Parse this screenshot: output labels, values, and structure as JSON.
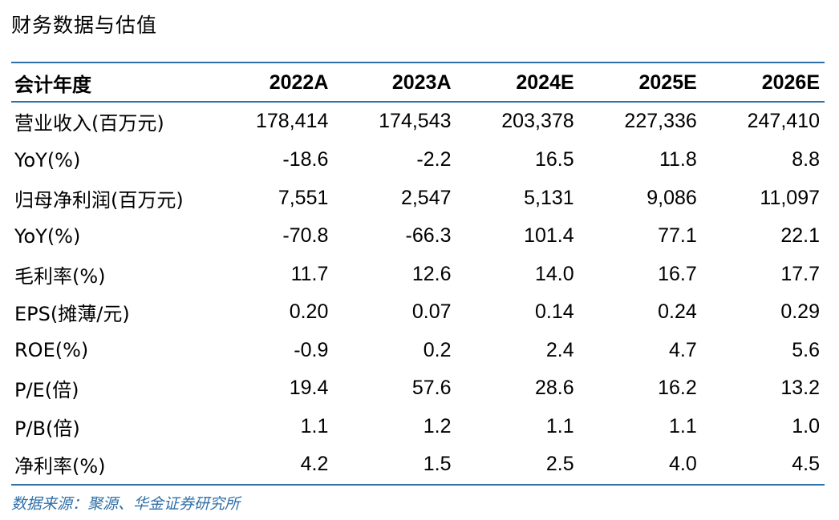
{
  "title": "财务数据与估值",
  "table": {
    "header": {
      "label": "会计年度",
      "years": [
        "2022A",
        "2023A",
        "2024E",
        "2025E",
        "2026E"
      ]
    },
    "rows": [
      {
        "label": "营业收入(百万元)",
        "values": [
          "178,414",
          "174,543",
          "203,378",
          "227,336",
          "247,410"
        ]
      },
      {
        "label": "YoY(%)",
        "values": [
          "-18.6",
          "-2.2",
          "16.5",
          "11.8",
          "8.8"
        ]
      },
      {
        "label": "归母净利润(百万元)",
        "values": [
          "7,551",
          "2,547",
          "5,131",
          "9,086",
          "11,097"
        ]
      },
      {
        "label": "YoY(%)",
        "values": [
          "-70.8",
          "-66.3",
          "101.4",
          "77.1",
          "22.1"
        ]
      },
      {
        "label": "毛利率(%)",
        "values": [
          "11.7",
          "12.6",
          "14.0",
          "16.7",
          "17.7"
        ]
      },
      {
        "label": "EPS(摊薄/元)",
        "values": [
          "0.20",
          "0.07",
          "0.14",
          "0.24",
          "0.29"
        ]
      },
      {
        "label": "ROE(%)",
        "values": [
          "-0.9",
          "0.2",
          "2.4",
          "4.7",
          "5.6"
        ]
      },
      {
        "label": "P/E(倍)",
        "values": [
          "19.4",
          "57.6",
          "28.6",
          "16.2",
          "13.2"
        ]
      },
      {
        "label": "P/B(倍)",
        "values": [
          "1.1",
          "1.2",
          "1.1",
          "1.1",
          "1.0"
        ]
      },
      {
        "label": "净利率(%)",
        "values": [
          "4.2",
          "1.5",
          "2.5",
          "4.0",
          "4.5"
        ]
      }
    ]
  },
  "source": "数据来源：聚源、华金证券研究所",
  "colors": {
    "rule": "#2f6fa8",
    "source_text": "#2f6fa8"
  }
}
